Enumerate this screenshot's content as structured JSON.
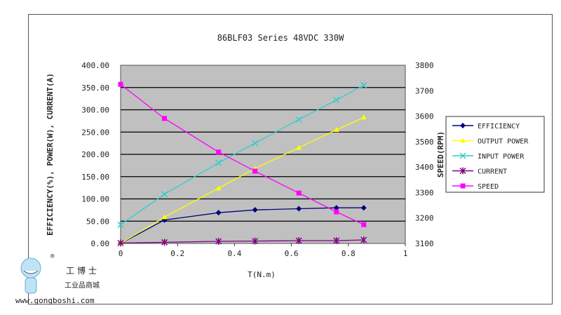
{
  "chart_data": {
    "type": "line",
    "title": "86BLF03 Series 48VDC 330W",
    "xlabel": "T(N.m)",
    "ylabel_left": "EFFICIENCY(%), POWER(W), CURRENT(A)",
    "ylabel_right": "SPEED(RPM)",
    "xlim": [
      0,
      1
    ],
    "ylim_left": [
      0,
      400
    ],
    "ylim_right": [
      3100,
      3800
    ],
    "x_ticks": [
      "0",
      "0.2",
      "0.4",
      "0.6",
      "0.8",
      "1"
    ],
    "y_ticks_left": [
      "0.00",
      "50.00",
      "100.00",
      "150.00",
      "200.00",
      "250.00",
      "300.00",
      "350.00",
      "400.00"
    ],
    "y_ticks_right": [
      "3100",
      "3200",
      "3300",
      "3400",
      "3500",
      "3600",
      "3700",
      "3800"
    ],
    "grid": "horizontal",
    "plot_background": "#c0c0c0",
    "legend_placement": "right",
    "x": [
      0,
      0.154,
      0.344,
      0.472,
      0.626,
      0.758,
      0.854
    ],
    "series": [
      {
        "name": "EFFICIENCY",
        "axis": "left",
        "color": "#000080",
        "marker": "diamond",
        "values": [
          0,
          52.6,
          69,
          75.3,
          77.9,
          80,
          80
        ]
      },
      {
        "name": "OUTPUT POWER",
        "axis": "left",
        "color": "#ffff00",
        "marker": "triangle",
        "values": [
          0,
          59,
          124,
          168,
          215,
          255,
          283
        ]
      },
      {
        "name": "INPUT POWER",
        "axis": "left",
        "color": "#33cccc",
        "marker": "x",
        "values": [
          42,
          110.5,
          181,
          225,
          278,
          322,
          355
        ]
      },
      {
        "name": "CURRENT",
        "axis": "left",
        "color": "#800080",
        "marker": "asterisk",
        "values": [
          1.0,
          2.6,
          4.7,
          5.3,
          6.3,
          6.3,
          7.9
        ]
      },
      {
        "name": "SPEED",
        "axis": "right",
        "color": "#ff00ff",
        "marker": "square",
        "values": [
          3725,
          3591,
          3459,
          3384,
          3298,
          3224,
          3174
        ]
      }
    ]
  },
  "watermark": {
    "brand_cn": "工博士",
    "subtitle_cn": "工业品商城",
    "url": "www.gongboshi.com",
    "mark": "®"
  }
}
